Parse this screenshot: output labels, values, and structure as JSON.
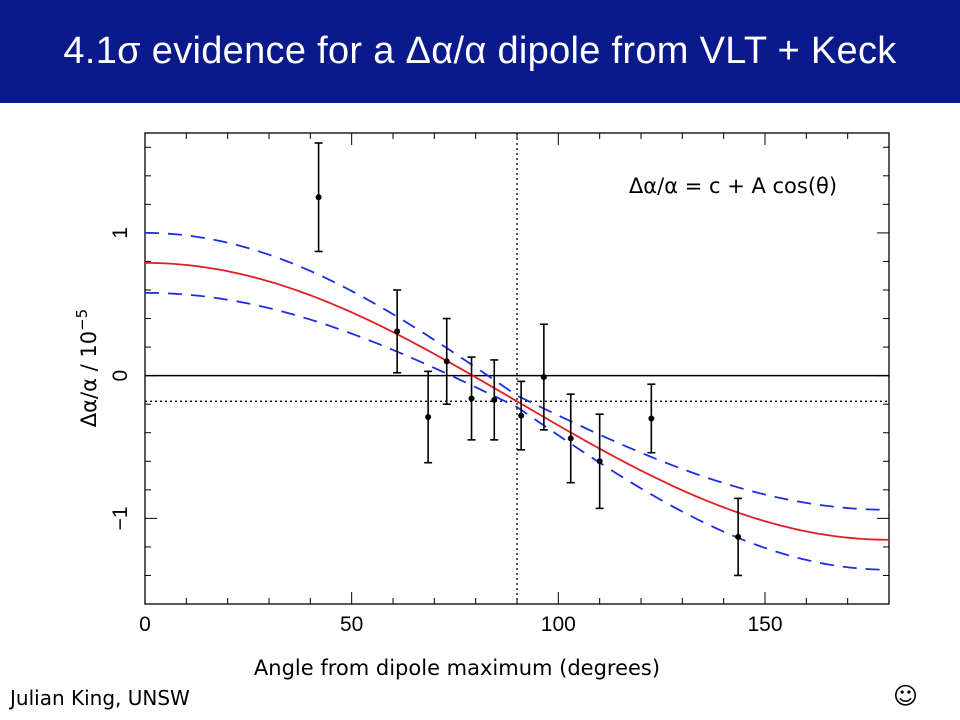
{
  "slide": {
    "title": "4.1σ evidence for a Δα/α dipole from VLT + Keck",
    "footer_author": "Julian King, UNSW",
    "footer_smiley": "☺"
  },
  "chart_data": {
    "type": "scatter",
    "title": "",
    "annotation": "Δα/α = c + A cos(θ)",
    "xlabel": "Angle from dipole maximum (degrees)",
    "ylabel": "Δα/α  /  10",
    "ylabel_exponent": "−5",
    "xlim": [
      0,
      180
    ],
    "ylim": [
      -1.6,
      1.7
    ],
    "x_ticks": [
      0,
      50,
      100,
      150
    ],
    "y_ticks": [
      -1,
      0,
      1
    ],
    "y_tick_labels": [
      "−1",
      "0",
      "1"
    ],
    "grid": false,
    "vertical_reference_x": 90,
    "horizontal_reference_y": -0.18,
    "zero_line": 0,
    "series": [
      {
        "kind": "points_with_errorbars",
        "points": [
          {
            "x": 42,
            "y": 1.25,
            "err": 0.38
          },
          {
            "x": 61,
            "y": 0.31,
            "err": 0.29
          },
          {
            "x": 68.5,
            "y": -0.29,
            "err": 0.32
          },
          {
            "x": 73,
            "y": 0.1,
            "err": 0.3
          },
          {
            "x": 79,
            "y": -0.16,
            "err": 0.29
          },
          {
            "x": 84.5,
            "y": -0.17,
            "err": 0.28
          },
          {
            "x": 91,
            "y": -0.28,
            "err": 0.24
          },
          {
            "x": 96.5,
            "y": -0.01,
            "err": 0.37
          },
          {
            "x": 103,
            "y": -0.44,
            "err": 0.31
          },
          {
            "x": 110,
            "y": -0.6,
            "err": 0.33
          },
          {
            "x": 122.5,
            "y": -0.3,
            "err": 0.24
          },
          {
            "x": 143.5,
            "y": -1.13,
            "err": 0.27
          }
        ],
        "color": "#000000"
      },
      {
        "kind": "fit_curve",
        "model": "c + A cos(theta)",
        "c": -0.18,
        "A": 0.97,
        "color": "#e02020"
      },
      {
        "kind": "confidence_band",
        "c": -0.18,
        "A": 0.97,
        "offset": 0.21,
        "offset_min": 0.04,
        "color": "#1a2fe0",
        "style": "dashed"
      }
    ]
  }
}
